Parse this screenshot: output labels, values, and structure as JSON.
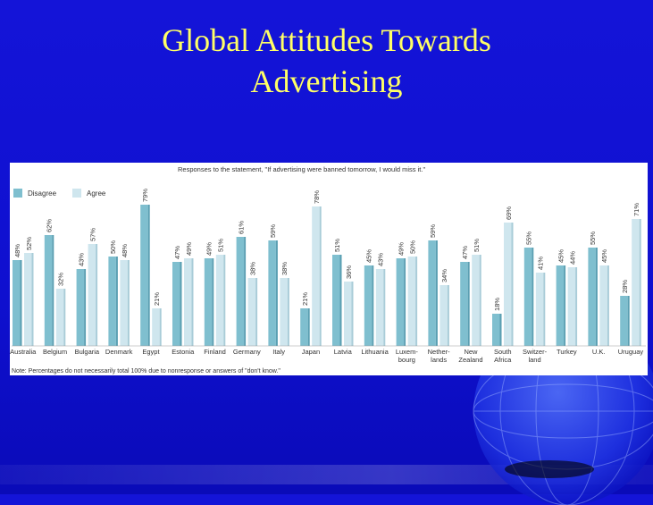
{
  "slide": {
    "title_line1": "Global Attitudes Towards",
    "title_line2": "Advertising"
  },
  "colors": {
    "background": "#1212d4",
    "title": "#ffff66",
    "disagree": "#7fbfcf",
    "agree": "#cfe6ee",
    "panel": "#ffffff"
  },
  "chart_data": {
    "type": "bar",
    "title": "Responses to the statement, \"If advertising were banned tomorrow, I would miss it.\"",
    "note": "Note: Percentages do not necessarily total 100% due to nonresponse or answers of \"don't know.\"",
    "legend_placement": "top-left",
    "ylim": [
      0,
      80
    ],
    "grid": false,
    "categories": [
      [
        "Australia"
      ],
      [
        "Belgium"
      ],
      [
        "Bulgaria"
      ],
      [
        "Denmark"
      ],
      [
        "Egypt"
      ],
      [
        "Estonia"
      ],
      [
        "Finland"
      ],
      [
        "Germany"
      ],
      [
        "Italy"
      ],
      [
        "Japan"
      ],
      [
        "Latvia"
      ],
      [
        "Lithuania"
      ],
      [
        "Luxem-",
        "bourg"
      ],
      [
        "Nether-",
        "lands"
      ],
      [
        "New",
        "Zealand"
      ],
      [
        "South",
        "Africa"
      ],
      [
        "Switzer-",
        "land"
      ],
      [
        "Turkey"
      ],
      [
        "U.K."
      ],
      [
        "Uruguay"
      ]
    ],
    "series": [
      {
        "name": "Disagree",
        "color": "#7fbfcf",
        "values": [
          48,
          62,
          43,
          50,
          79,
          47,
          49,
          61,
          59,
          21,
          51,
          45,
          49,
          59,
          47,
          18,
          55,
          45,
          55,
          28
        ],
        "labels": [
          "48%",
          "62%",
          "43%",
          "50%",
          "79%",
          "47%",
          "49%",
          "61%",
          "59%",
          "21%",
          "51%",
          "45%",
          "49%",
          "59%",
          "47%",
          "18%",
          "55%",
          "45%",
          "55%",
          "28%"
        ]
      },
      {
        "name": "Agree",
        "color": "#cfe6ee",
        "values": [
          52,
          32,
          57,
          48,
          21,
          49,
          51,
          38,
          38,
          78,
          36,
          43,
          50,
          34,
          51,
          69,
          41,
          44,
          45,
          71
        ],
        "labels": [
          "52%",
          "32%",
          "57%",
          "48%",
          "21%",
          "49%",
          "51%",
          "38%",
          "38%",
          "78%",
          "36%",
          "43%",
          "50%",
          "34%",
          "51%",
          "69%",
          "41%",
          "44%",
          "45%",
          "71%"
        ]
      }
    ]
  }
}
